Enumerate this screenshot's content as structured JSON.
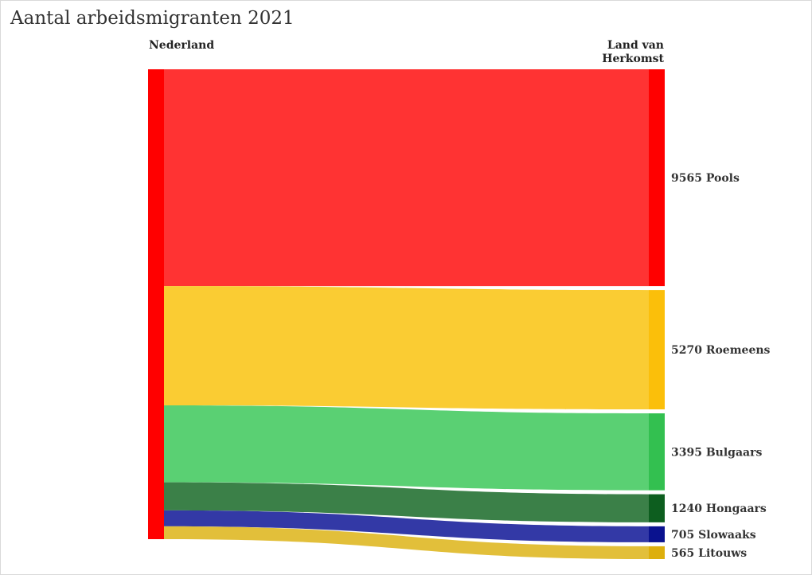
{
  "chart": {
    "title": "Aantal arbeidsmigranten 2021",
    "source_header": "Nederland",
    "target_header": "Land van Herkomst"
  },
  "chart_data": {
    "type": "sankey",
    "title": "Aantal arbeidsmigranten 2021",
    "source": {
      "name": "Nederland",
      "color": "#ff0000"
    },
    "flows": [
      {
        "name": "Pools",
        "value": 9565,
        "label": "9565 Pools",
        "node_color": "#ff0000",
        "flow_color": "#ff3333"
      },
      {
        "name": "Roemeens",
        "value": 5270,
        "label": "5270 Roemeens",
        "node_color": "#fbbf0a",
        "flow_color": "#facc33"
      },
      {
        "name": "Bulgaars",
        "value": 3395,
        "label": "3395 Bulgaars",
        "node_color": "#33c050",
        "flow_color": "#5ad073"
      },
      {
        "name": "Hongaars",
        "value": 1240,
        "label": "1240 Hongaars",
        "node_color": "#0d5e1f",
        "flow_color": "#3b8048"
      },
      {
        "name": "Slowaaks",
        "value": 705,
        "label": "705 Slowaaks",
        "node_color": "#0a128f",
        "flow_color": "#3339a6"
      },
      {
        "name": "Litouws",
        "value": 565,
        "label": "565 Litouws",
        "node_color": "#ddaf0d",
        "flow_color": "#e2bf3a"
      }
    ]
  }
}
